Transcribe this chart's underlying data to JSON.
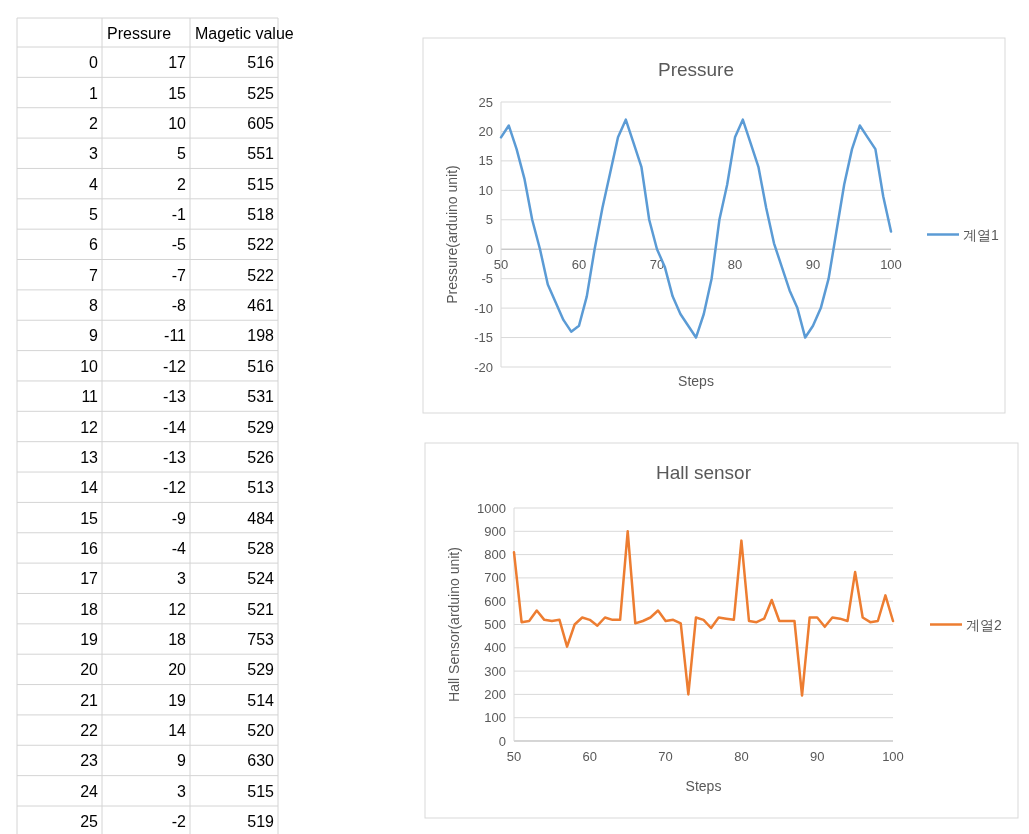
{
  "chart_data": [
    {
      "type": "heatmap",
      "data_labels": true,
      "categories": [
        "Pressure",
        "Magetic value"
      ],
      "y_categories": [
        "0",
        "1",
        "2",
        "3",
        "4",
        "5",
        "6",
        "7",
        "8",
        "9",
        "10",
        "11",
        "12",
        "13",
        "14",
        "15",
        "16",
        "17",
        "18",
        "19",
        "20",
        "21",
        "22",
        "23",
        "24",
        "25"
      ],
      "cells": [
        [
          17,
          516
        ],
        [
          15,
          525
        ],
        [
          10,
          605
        ],
        [
          5,
          551
        ],
        [
          2,
          515
        ],
        [
          -1,
          518
        ],
        [
          -5,
          522
        ],
        [
          -7,
          522
        ],
        [
          -8,
          461
        ],
        [
          -11,
          198
        ],
        [
          -12,
          516
        ],
        [
          -13,
          531
        ],
        [
          -14,
          529
        ],
        [
          -13,
          526
        ],
        [
          -12,
          513
        ],
        [
          -9,
          484
        ],
        [
          -4,
          528
        ],
        [
          3,
          524
        ],
        [
          12,
          521
        ],
        [
          18,
          753
        ],
        [
          20,
          529
        ],
        [
          19,
          514
        ],
        [
          14,
          520
        ],
        [
          9,
          630
        ],
        [
          3,
          515
        ],
        [
          -2,
          519
        ]
      ]
    },
    {
      "type": "line",
      "title": "Pressure",
      "xlabel": "Steps",
      "ylabel": "Pressure(arduino unit)",
      "x": [
        50,
        51,
        52,
        53,
        54,
        55,
        56,
        57,
        58,
        59,
        60,
        61,
        62,
        63,
        64,
        65,
        66,
        67,
        68,
        69,
        70,
        71,
        72,
        73,
        74,
        75,
        76,
        77,
        78,
        79,
        80,
        81,
        82,
        83,
        84,
        85,
        86,
        87,
        88,
        89,
        90,
        91,
        92,
        93,
        94,
        95,
        96,
        97,
        98,
        99,
        100
      ],
      "series": [
        {
          "name": "계열1",
          "color": "#5b9bd5",
          "values": [
            19,
            21,
            17,
            12,
            5,
            0,
            -6,
            -9,
            -12,
            -14,
            -13,
            -8,
            0,
            7,
            13,
            19,
            22,
            18,
            14,
            5,
            0,
            -3,
            -8,
            -11,
            -13,
            -15,
            -11,
            -5,
            5,
            11,
            19,
            22,
            18,
            14,
            7,
            1,
            -3,
            -7,
            -10,
            -15,
            -13,
            -10,
            -5,
            3,
            11,
            17,
            21,
            19,
            17,
            9,
            3
          ]
        }
      ],
      "xlim": [
        50,
        100
      ],
      "xticks": [
        50,
        60,
        70,
        80,
        90,
        100
      ],
      "ylim": [
        -20,
        25
      ],
      "yticks": [
        -20,
        -15,
        -10,
        -5,
        0,
        5,
        10,
        15,
        20,
        25
      ],
      "grid": "y",
      "legend": "right"
    },
    {
      "type": "line",
      "title": "Hall sensor",
      "xlabel": "Steps",
      "ylabel": "Hall Sensor(arduino unit)",
      "x": [
        50,
        51,
        52,
        53,
        54,
        55,
        56,
        57,
        58,
        59,
        60,
        61,
        62,
        63,
        64,
        65,
        66,
        67,
        68,
        69,
        70,
        71,
        72,
        73,
        74,
        75,
        76,
        77,
        78,
        79,
        80,
        81,
        82,
        83,
        84,
        85,
        86,
        87,
        88,
        89,
        90,
        91,
        92,
        93,
        94,
        95,
        96,
        97,
        98,
        99,
        100
      ],
      "series": [
        {
          "name": "계열2",
          "color": "#ed7d31",
          "values": [
            810,
            510,
            515,
            560,
            520,
            515,
            520,
            405,
            500,
            530,
            520,
            495,
            530,
            520,
            520,
            900,
            505,
            515,
            530,
            560,
            515,
            520,
            505,
            200,
            530,
            520,
            485,
            530,
            525,
            520,
            860,
            515,
            510,
            525,
            605,
            515,
            515,
            515,
            195,
            530,
            530,
            490,
            530,
            525,
            515,
            725,
            530,
            510,
            515,
            625,
            515
          ]
        }
      ],
      "xlim": [
        50,
        100
      ],
      "xticks": [
        50,
        60,
        70,
        80,
        90,
        100
      ],
      "ylim": [
        0,
        1000
      ],
      "yticks": [
        0,
        100,
        200,
        300,
        400,
        500,
        600,
        700,
        800,
        900,
        1000
      ],
      "grid": "y",
      "legend": "right"
    }
  ]
}
